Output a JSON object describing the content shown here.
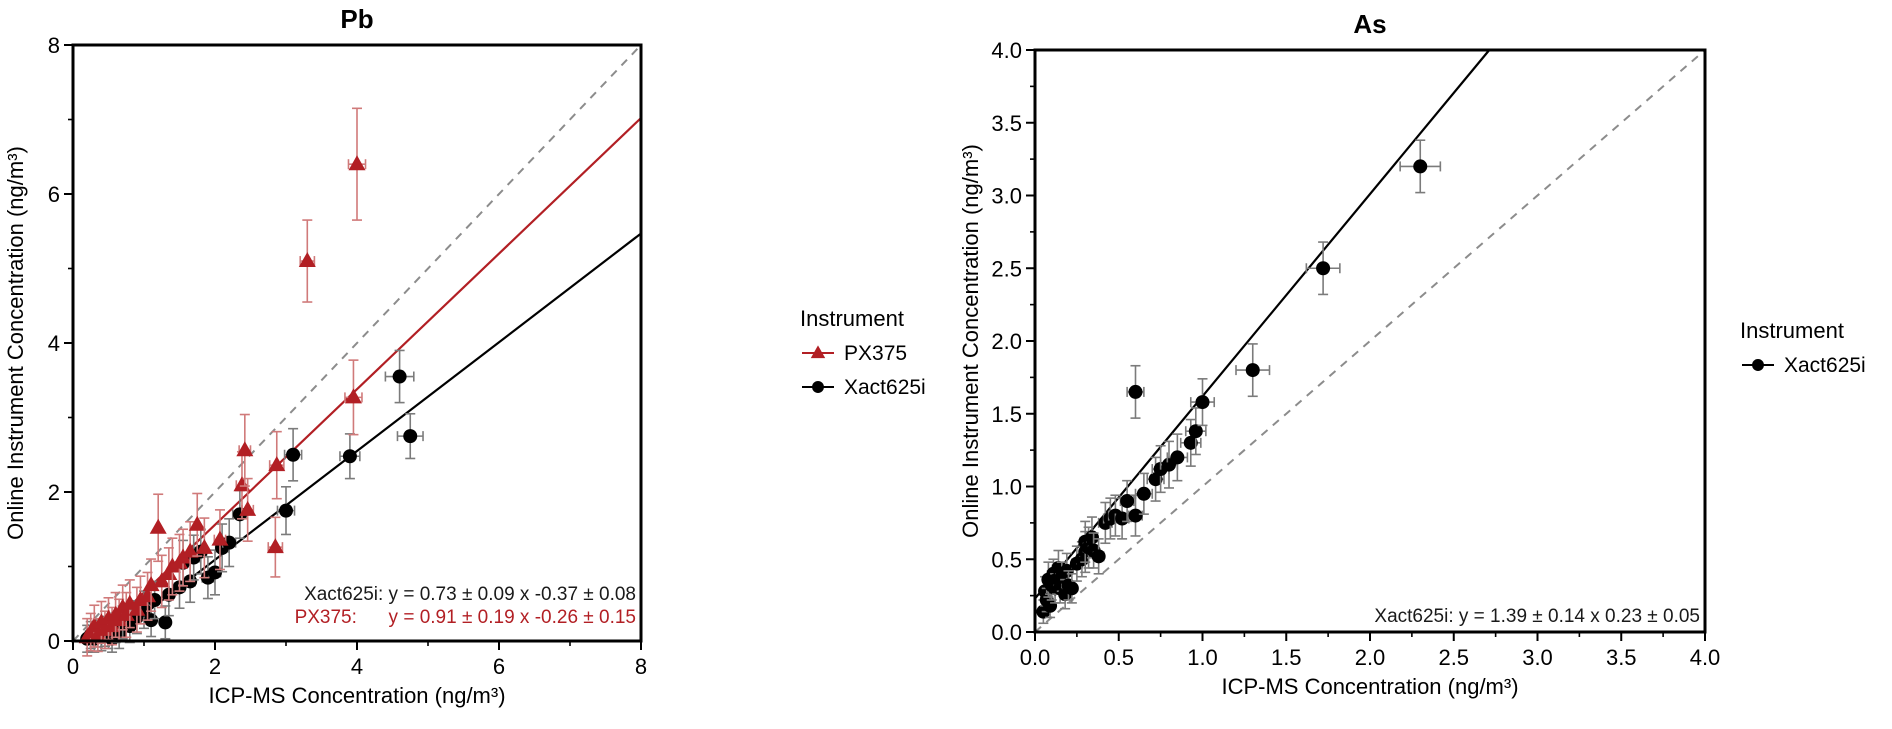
{
  "figure": {
    "background": "#ffffff"
  },
  "chart_data": [
    {
      "id": "pb",
      "type": "scatter",
      "title": "Pb",
      "xlabel": "ICP-MS Concentration (ng/m³)",
      "ylabel": "Online Instrument Concentration (ng/m³)",
      "xlim": [
        0,
        8
      ],
      "ylim": [
        0,
        8
      ],
      "xticks": {
        "major": [
          0,
          2,
          4,
          6,
          8
        ],
        "labels": [
          "0",
          "2",
          "4",
          "6",
          "8"
        ],
        "minor": [
          1,
          3,
          5,
          7
        ]
      },
      "yticks": {
        "major": [
          0,
          2,
          4,
          6,
          8
        ],
        "labels": [
          "0",
          "2",
          "4",
          "6",
          "8"
        ],
        "minor": [
          1,
          3,
          5,
          7
        ]
      },
      "identity_line": {
        "label": "1:1 line",
        "color": "#8c8c8c",
        "dash": "8,7"
      },
      "legend": {
        "title": "Instrument",
        "entries": [
          {
            "label": "PX375",
            "marker": "triangle",
            "color": "#b21f24"
          },
          {
            "label": "Xact625i",
            "marker": "circle",
            "color": "#000000"
          }
        ]
      },
      "fits": [
        {
          "name": "Xact625i",
          "slope": 0.73,
          "intercept": -0.37,
          "color": "#000000"
        },
        {
          "name": "PX375",
          "slope": 0.91,
          "intercept": -0.26,
          "color": "#b21f24"
        }
      ],
      "annotations": [
        {
          "text": "Xact625i: y = 0.73 ± 0.09 x -0.37 ± 0.08",
          "color": "#1a1a1a"
        },
        {
          "text": "PX375:      y = 0.91 ± 0.19 x -0.26 ± 0.15",
          "color": "#b21f24"
        }
      ],
      "series": [
        {
          "name": "Xact625i",
          "marker": "circle",
          "color": "#000000",
          "errorbar_color": "#7b7b7b",
          "points": [
            [
              0.2,
              0.03,
              0,
              0.18
            ],
            [
              0.25,
              0.08,
              0,
              0.18
            ],
            [
              0.3,
              0.03,
              0,
              0.18
            ],
            [
              0.35,
              0.1,
              0,
              0.18
            ],
            [
              0.4,
              0.05,
              0,
              0.18
            ],
            [
              0.45,
              0.13,
              0,
              0.2
            ],
            [
              0.5,
              0.08,
              0,
              0.18
            ],
            [
              0.55,
              0.03,
              0,
              0.18
            ],
            [
              0.6,
              0.18,
              0,
              0.2
            ],
            [
              0.65,
              0.1,
              0,
              0.2
            ],
            [
              0.7,
              0.25,
              0,
              0.22
            ],
            [
              0.8,
              0.2,
              0,
              0.22
            ],
            [
              0.9,
              0.32,
              0,
              0.22
            ],
            [
              1.0,
              0.42,
              0.06,
              0.25
            ],
            [
              1.1,
              0.28,
              0,
              0.22
            ],
            [
              1.15,
              0.55,
              0.06,
              0.25
            ],
            [
              1.3,
              0.25,
              0,
              0.22
            ],
            [
              1.35,
              0.62,
              0.06,
              0.28
            ],
            [
              1.5,
              0.72,
              0.07,
              0.28
            ],
            [
              1.55,
              1.05,
              0.07,
              0.3
            ],
            [
              1.65,
              0.8,
              0.07,
              0.28
            ],
            [
              1.7,
              1.12,
              0.08,
              0.3
            ],
            [
              1.8,
              1.2,
              0.08,
              0.3
            ],
            [
              1.9,
              0.85,
              0.08,
              0.28
            ],
            [
              2.0,
              0.92,
              0.08,
              0.3
            ],
            [
              2.1,
              1.25,
              0.09,
              0.32
            ],
            [
              2.2,
              1.32,
              0.09,
              0.32
            ],
            [
              2.35,
              1.7,
              0.1,
              0.32
            ],
            [
              3.0,
              1.75,
              0.12,
              0.32
            ],
            [
              3.1,
              2.5,
              0.12,
              0.35
            ],
            [
              3.9,
              2.48,
              0.14,
              0.3
            ],
            [
              4.6,
              3.55,
              0.2,
              0.35
            ],
            [
              4.75,
              2.75,
              0.18,
              0.3
            ]
          ]
        },
        {
          "name": "PX375",
          "marker": "triangle",
          "color": "#b21f24",
          "errorbar_color": "#d07a7a",
          "points": [
            [
              0.2,
              0.05,
              0,
              0.25
            ],
            [
              0.25,
              0.12,
              0,
              0.25
            ],
            [
              0.3,
              0.2,
              0,
              0.28
            ],
            [
              0.35,
              0.08,
              0,
              0.22
            ],
            [
              0.4,
              0.25,
              0,
              0.28
            ],
            [
              0.45,
              0.15,
              0,
              0.25
            ],
            [
              0.5,
              0.3,
              0,
              0.28
            ],
            [
              0.55,
              0.2,
              0,
              0.25
            ],
            [
              0.6,
              0.35,
              0,
              0.3
            ],
            [
              0.65,
              0.28,
              0,
              0.28
            ],
            [
              0.7,
              0.45,
              0,
              0.3
            ],
            [
              0.75,
              0.35,
              0,
              0.3
            ],
            [
              0.8,
              0.5,
              0,
              0.32
            ],
            [
              0.9,
              0.42,
              0,
              0.3
            ],
            [
              0.95,
              0.55,
              0,
              0.32
            ],
            [
              1.05,
              0.6,
              0,
              0.32
            ],
            [
              1.1,
              0.75,
              0,
              0.35
            ],
            [
              1.2,
              1.52,
              0,
              0.45
            ],
            [
              1.25,
              0.8,
              0,
              0.35
            ],
            [
              1.35,
              0.9,
              0,
              0.35
            ],
            [
              1.4,
              1.0,
              0,
              0.38
            ],
            [
              1.5,
              1.05,
              0,
              0.38
            ],
            [
              1.55,
              1.12,
              0,
              0.38
            ],
            [
              1.65,
              1.2,
              0,
              0.4
            ],
            [
              1.75,
              1.56,
              0,
              0.42
            ],
            [
              1.85,
              1.25,
              0,
              0.4
            ],
            [
              2.07,
              1.36,
              0.08,
              0.4
            ],
            [
              2.38,
              2.09,
              0.08,
              0.45
            ],
            [
              2.42,
              2.56,
              0.08,
              0.48
            ],
            [
              2.46,
              1.76,
              0.08,
              0.42
            ],
            [
              2.85,
              1.26,
              0.1,
              0.4
            ],
            [
              2.87,
              2.36,
              0.1,
              0.45
            ],
            [
              3.3,
              5.1,
              0.1,
              0.55
            ],
            [
              3.95,
              3.27,
              0.12,
              0.5
            ],
            [
              4.0,
              6.4,
              0.12,
              0.75
            ]
          ]
        }
      ]
    },
    {
      "id": "as",
      "type": "scatter",
      "title": "As",
      "xlabel": "ICP-MS Concentration (ng/m³)",
      "ylabel": "Online Instrument Concentration (ng/m³)",
      "xlim": [
        0,
        4
      ],
      "ylim": [
        0,
        4
      ],
      "xticks": {
        "major": [
          0,
          0.5,
          1,
          1.5,
          2,
          2.5,
          3,
          3.5,
          4
        ],
        "labels": [
          "0.0",
          "0.5",
          "1.0",
          "1.5",
          "2.0",
          "2.5",
          "3.0",
          "3.5",
          "4.0"
        ],
        "minor": [
          0.25,
          0.75,
          1.25,
          1.75,
          2.25,
          2.75,
          3.25,
          3.75
        ]
      },
      "yticks": {
        "major": [
          0,
          0.5,
          1,
          1.5,
          2,
          2.5,
          3,
          3.5,
          4
        ],
        "labels": [
          "0.0",
          "0.5",
          "1.0",
          "1.5",
          "2.0",
          "2.5",
          "3.0",
          "3.5",
          "4.0"
        ],
        "minor": [
          0.25,
          0.75,
          1.25,
          1.75,
          2.25,
          2.75,
          3.25,
          3.75
        ]
      },
      "identity_line": {
        "label": "1:1 line",
        "color": "#8c8c8c",
        "dash": "8,7"
      },
      "legend": {
        "title": "Instrument",
        "entries": [
          {
            "label": "Xact625i",
            "marker": "circle",
            "color": "#000000"
          }
        ]
      },
      "fits": [
        {
          "name": "Xact625i",
          "slope": 1.39,
          "intercept": 0.23,
          "color": "#000000"
        }
      ],
      "annotations": [
        {
          "text": "Xact625i: y = 1.39 ± 0.14 x 0.23 ± 0.05",
          "color": "#1a1a1a"
        }
      ],
      "series": [
        {
          "name": "Xact625i",
          "marker": "circle",
          "color": "#000000",
          "errorbar_color": "#7b7b7b",
          "points": [
            [
              0.05,
              0.14,
              0.02,
              0.08
            ],
            [
              0.06,
              0.28,
              0.02,
              0.1
            ],
            [
              0.07,
              0.22,
              0.02,
              0.08
            ],
            [
              0.08,
              0.36,
              0.02,
              0.12
            ],
            [
              0.09,
              0.18,
              0.02,
              0.08
            ],
            [
              0.1,
              0.32,
              0.02,
              0.1
            ],
            [
              0.11,
              0.4,
              0.02,
              0.1
            ],
            [
              0.12,
              0.3,
              0.02,
              0.1
            ],
            [
              0.13,
              0.36,
              0.02,
              0.1
            ],
            [
              0.14,
              0.44,
              0.02,
              0.12
            ],
            [
              0.15,
              0.3,
              0.02,
              0.1
            ],
            [
              0.16,
              0.38,
              0.02,
              0.1
            ],
            [
              0.18,
              0.26,
              0.02,
              0.1
            ],
            [
              0.19,
              0.42,
              0.02,
              0.12
            ],
            [
              0.2,
              0.32,
              0.02,
              0.1
            ],
            [
              0.22,
              0.3,
              0.02,
              0.1
            ],
            [
              0.25,
              0.47,
              0.03,
              0.12
            ],
            [
              0.28,
              0.5,
              0.03,
              0.12
            ],
            [
              0.3,
              0.55,
              0.03,
              0.14
            ],
            [
              0.3,
              0.62,
              0.03,
              0.14
            ],
            [
              0.32,
              0.58,
              0.03,
              0.14
            ],
            [
              0.34,
              0.65,
              0.03,
              0.14
            ],
            [
              0.35,
              0.56,
              0.03,
              0.12
            ],
            [
              0.38,
              0.52,
              0.03,
              0.12
            ],
            [
              0.42,
              0.75,
              0.04,
              0.14
            ],
            [
              0.45,
              0.78,
              0.04,
              0.14
            ],
            [
              0.48,
              0.8,
              0.04,
              0.14
            ],
            [
              0.52,
              0.78,
              0.04,
              0.14
            ],
            [
              0.55,
              0.9,
              0.04,
              0.14
            ],
            [
              0.6,
              0.8,
              0.04,
              0.14
            ],
            [
              0.6,
              1.65,
              0.05,
              0.18
            ],
            [
              0.65,
              0.95,
              0.05,
              0.14
            ],
            [
              0.72,
              1.05,
              0.05,
              0.15
            ],
            [
              0.75,
              1.12,
              0.05,
              0.16
            ],
            [
              0.8,
              1.15,
              0.05,
              0.16
            ],
            [
              0.85,
              1.2,
              0.06,
              0.16
            ],
            [
              0.93,
              1.3,
              0.06,
              0.16
            ],
            [
              0.96,
              1.38,
              0.06,
              0.16
            ],
            [
              1.0,
              1.58,
              0.07,
              0.16
            ],
            [
              1.3,
              1.8,
              0.1,
              0.18
            ],
            [
              1.72,
              2.5,
              0.1,
              0.18
            ],
            [
              2.3,
              3.2,
              0.12,
              0.18
            ]
          ]
        }
      ]
    }
  ]
}
